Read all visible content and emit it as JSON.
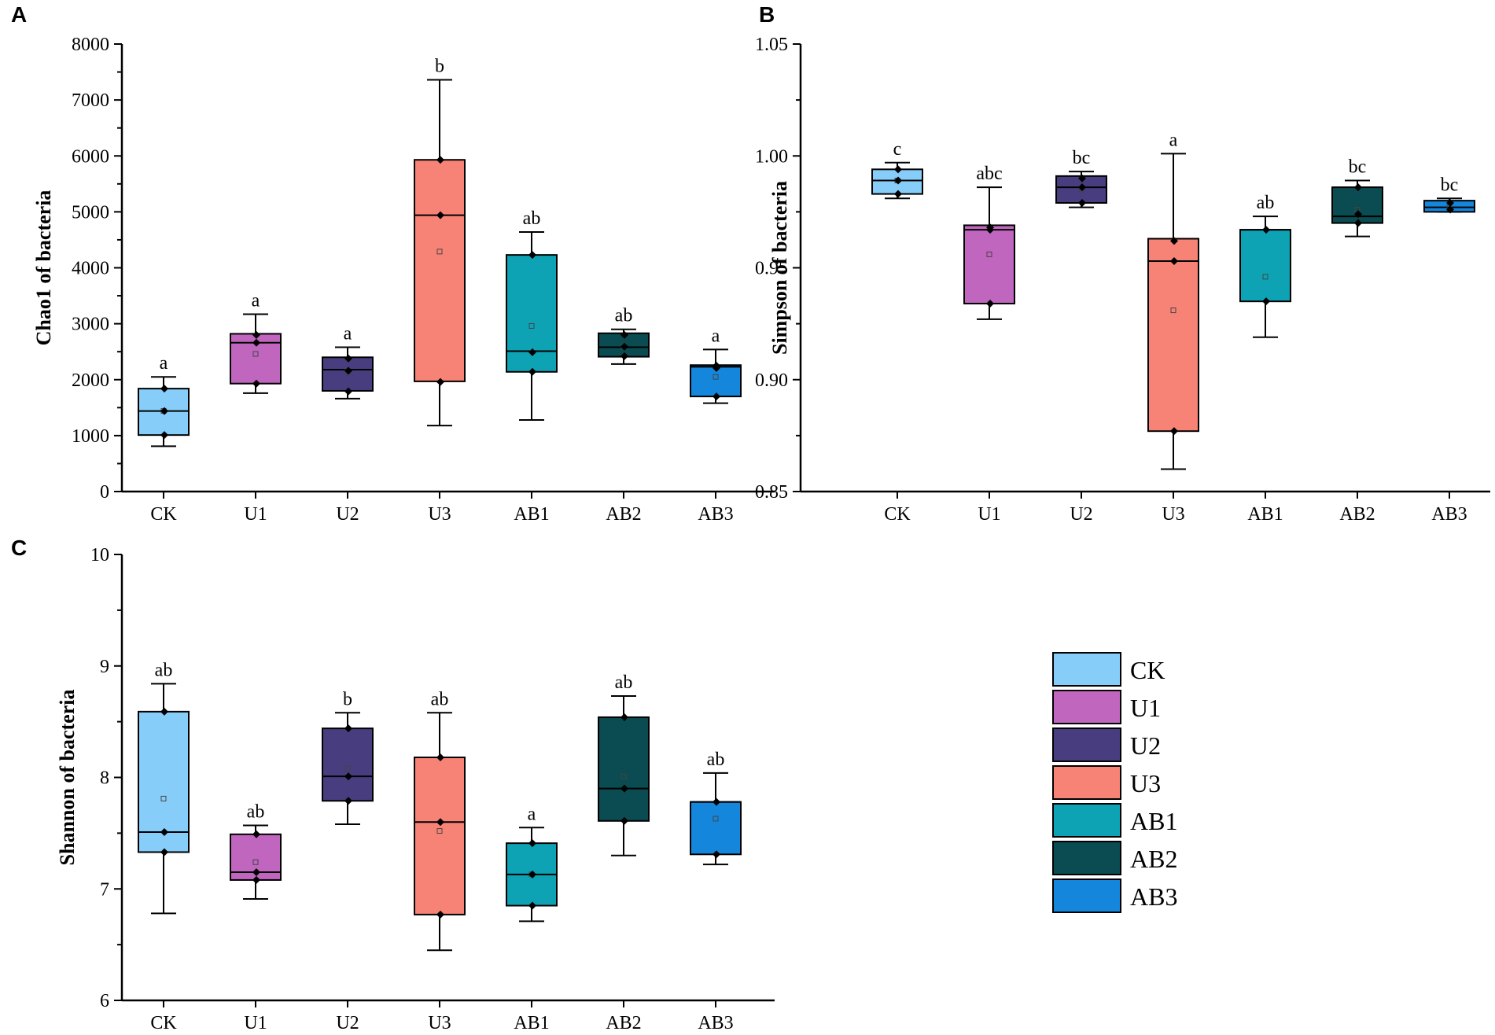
{
  "colors": {
    "CK": "#87cdf9",
    "U1": "#c066bf",
    "U2": "#473d7f",
    "U3": "#f78276",
    "AB1": "#0ea3b4",
    "AB2": "#0a4c51",
    "AB3": "#1487dc"
  },
  "legend": {
    "items": [
      "CK",
      "U1",
      "U2",
      "U3",
      "AB1",
      "AB2",
      "AB3"
    ]
  },
  "chart_data": [
    {
      "id": "A",
      "type": "box",
      "panel_label": "A",
      "ylabel": "Chao1 of bacteria",
      "ylim": [
        0,
        8000
      ],
      "yticks": [
        0,
        1000,
        2000,
        3000,
        4000,
        5000,
        6000,
        7000,
        8000
      ],
      "ytick_labels": [
        "0",
        "1000",
        "2000",
        "3000",
        "4000",
        "5000",
        "6000",
        "7000",
        "8000"
      ],
      "categories": [
        "CK",
        "U1",
        "U2",
        "U3",
        "AB1",
        "AB2",
        "AB3"
      ],
      "boxes": [
        {
          "name": "CK",
          "min": 810,
          "q1": 1010,
          "median": 1440,
          "q3": 1840,
          "max": 2050,
          "mean": 1440,
          "points": [
            1840,
            1440,
            1010
          ],
          "sig": "a"
        },
        {
          "name": "U1",
          "min": 1760,
          "q1": 1930,
          "median": 2660,
          "q3": 2820,
          "max": 3170,
          "mean": 2460,
          "points": [
            2800,
            2660,
            1930
          ],
          "sig": "a"
        },
        {
          "name": "U2",
          "min": 1660,
          "q1": 1800,
          "median": 2180,
          "q3": 2400,
          "max": 2580,
          "mean": 2140,
          "points": [
            2380,
            2160,
            1790
          ],
          "sig": "a"
        },
        {
          "name": "U3",
          "min": 1180,
          "q1": 1970,
          "median": 4940,
          "q3": 5930,
          "max": 7360,
          "mean": 4290,
          "points": [
            5930,
            4940,
            1960
          ],
          "sig": "b"
        },
        {
          "name": "AB1",
          "min": 1280,
          "q1": 2140,
          "median": 2510,
          "q3": 4230,
          "max": 4640,
          "mean": 2960,
          "points": [
            4230,
            2490,
            2140
          ],
          "sig": "ab"
        },
        {
          "name": "AB2",
          "min": 2280,
          "q1": 2410,
          "median": 2580,
          "q3": 2830,
          "max": 2900,
          "mean": 2600,
          "points": [
            2800,
            2590,
            2420
          ],
          "sig": "ab"
        },
        {
          "name": "AB3",
          "min": 1580,
          "q1": 1700,
          "median": 2230,
          "q3": 2260,
          "max": 2540,
          "mean": 2050,
          "points": [
            2250,
            2210,
            1700
          ],
          "sig": "a"
        }
      ]
    },
    {
      "id": "B",
      "type": "box",
      "panel_label": "B",
      "ylabel": "Simpson of bacteria",
      "ylim": [
        0.85,
        1.05
      ],
      "yticks": [
        0.85,
        0.9,
        0.95,
        1.0,
        1.05
      ],
      "ytick_labels": [
        "0.85",
        "0.90",
        "0.95",
        "1.00",
        "1.05"
      ],
      "categories": [
        "CK",
        "U1",
        "U2",
        "U3",
        "AB1",
        "AB2",
        "AB3"
      ],
      "boxes": [
        {
          "name": "CK",
          "min": 0.981,
          "q1": 0.983,
          "median": 0.989,
          "q3": 0.994,
          "max": 0.997,
          "mean": 0.989,
          "points": [
            0.994,
            0.989,
            0.983
          ],
          "sig": "c"
        },
        {
          "name": "U1",
          "min": 0.927,
          "q1": 0.934,
          "median": 0.967,
          "q3": 0.969,
          "max": 0.986,
          "mean": 0.956,
          "points": [
            0.968,
            0.967,
            0.934
          ],
          "sig": "abc"
        },
        {
          "name": "U2",
          "min": 0.977,
          "q1": 0.979,
          "median": 0.986,
          "q3": 0.991,
          "max": 0.993,
          "mean": 0.985,
          "points": [
            0.99,
            0.986,
            0.979
          ],
          "sig": "bc"
        },
        {
          "name": "U3",
          "min": 0.86,
          "q1": 0.877,
          "median": 0.953,
          "q3": 0.963,
          "max": 1.001,
          "mean": 0.931,
          "points": [
            0.962,
            0.953,
            0.877
          ],
          "sig": "a"
        },
        {
          "name": "AB1",
          "min": 0.919,
          "q1": 0.935,
          "median": 0.967,
          "q3": 0.967,
          "max": 0.973,
          "mean": 0.946,
          "points": [
            0.967,
            0.935
          ],
          "sig": "ab"
        },
        {
          "name": "AB2",
          "min": 0.964,
          "q1": 0.97,
          "median": 0.973,
          "q3": 0.986,
          "max": 0.989,
          "mean": 0.976,
          "points": [
            0.986,
            0.974,
            0.97
          ],
          "sig": "bc"
        },
        {
          "name": "AB3",
          "min": 0.975,
          "q1": 0.975,
          "median": 0.977,
          "q3": 0.98,
          "max": 0.981,
          "mean": 0.977,
          "points": [
            0.979,
            0.976
          ],
          "sig": "bc"
        }
      ]
    },
    {
      "id": "C",
      "type": "box",
      "panel_label": "C",
      "ylabel": "Shannon of bacteria",
      "ylim": [
        6,
        10
      ],
      "yticks": [
        6,
        7,
        8,
        9,
        10
      ],
      "ytick_labels": [
        "6",
        "7",
        "8",
        "9",
        "10"
      ],
      "categories": [
        "CK",
        "U1",
        "U2",
        "U3",
        "AB1",
        "AB2",
        "AB3"
      ],
      "boxes": [
        {
          "name": "CK",
          "min": 6.78,
          "q1": 7.33,
          "median": 7.51,
          "q3": 8.59,
          "max": 8.84,
          "mean": 7.81,
          "points": [
            8.59,
            7.51,
            7.33
          ],
          "sig": "ab"
        },
        {
          "name": "U1",
          "min": 6.91,
          "q1": 7.08,
          "median": 7.15,
          "q3": 7.49,
          "max": 7.57,
          "mean": 7.24,
          "points": [
            7.49,
            7.15,
            7.08
          ],
          "sig": "ab"
        },
        {
          "name": "U2",
          "min": 7.58,
          "q1": 7.79,
          "median": 8.01,
          "q3": 8.44,
          "max": 8.58,
          "mean": 8.08,
          "points": [
            8.44,
            8.01,
            7.79
          ],
          "sig": "b"
        },
        {
          "name": "U3",
          "min": 6.45,
          "q1": 6.77,
          "median": 7.6,
          "q3": 8.18,
          "max": 8.58,
          "mean": 7.52,
          "points": [
            8.18,
            7.6,
            6.77
          ],
          "sig": "ab"
        },
        {
          "name": "AB1",
          "min": 6.71,
          "q1": 6.85,
          "median": 7.13,
          "q3": 7.41,
          "max": 7.55,
          "mean": 7.13,
          "points": [
            7.41,
            7.13,
            6.85
          ],
          "sig": "a"
        },
        {
          "name": "AB2",
          "min": 7.3,
          "q1": 7.61,
          "median": 7.9,
          "q3": 8.54,
          "max": 8.73,
          "mean": 8.01,
          "points": [
            8.54,
            7.9,
            7.61
          ],
          "sig": "ab"
        },
        {
          "name": "AB3",
          "min": 7.22,
          "q1": 7.31,
          "median": 7.78,
          "q3": 7.78,
          "max": 8.04,
          "mean": 7.63,
          "points": [
            7.78,
            7.31
          ],
          "sig": "ab"
        }
      ]
    }
  ]
}
